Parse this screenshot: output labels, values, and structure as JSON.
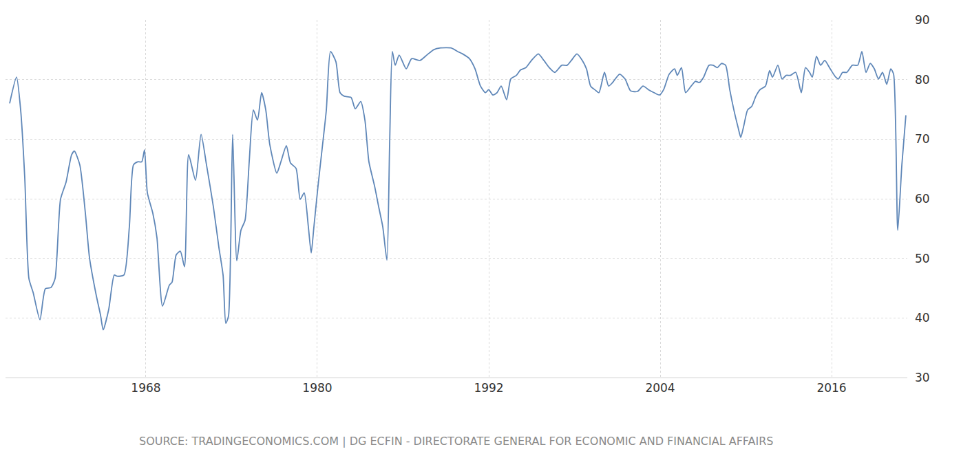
{
  "chart_data": {
    "type": "line",
    "annotations": [
      "SOURCE: TRADINGECONOMICS.COM | DG ECFIN - DIRECTORATE GENERAL FOR ECONOMIC AND FINANCIAL AFFAIRS"
    ],
    "x": [
      1958.46,
      1958.94,
      1959.23,
      1959.52,
      1959.81,
      1960.1,
      1960.58,
      1960.96,
      1961.35,
      1961.64,
      1962.02,
      1962.41,
      1962.8,
      1962.99,
      1963.37,
      1963.76,
      1964.05,
      1964.53,
      1964.82,
      1965.01,
      1965.4,
      1965.78,
      1965.98,
      1966.46,
      1966.84,
      1967.13,
      1967.42,
      1967.71,
      1967.9,
      1968.1,
      1968.48,
      1968.77,
      1969.16,
      1969.64,
      1969.83,
      1970.12,
      1970.41,
      1970.7,
      1970.99,
      1971.47,
      1971.86,
      1972.24,
      1972.72,
      1973.11,
      1973.4,
      1973.59,
      1973.78,
      1974.07,
      1974.36,
      1974.65,
      1974.94,
      1975.23,
      1975.52,
      1975.81,
      1976.1,
      1976.39,
      1976.67,
      1977.16,
      1977.45,
      1977.83,
      1978.12,
      1978.51,
      1978.8,
      1979.08,
      1979.37,
      1979.57,
      1979.76,
      1980.05,
      1980.34,
      1980.63,
      1980.92,
      1981.3,
      1981.59,
      1981.88,
      1982.36,
      1982.65,
      1983.04,
      1983.33,
      1983.61,
      1984.0,
      1984.29,
      1984.58,
      1984.87,
      1985.06,
      1985.25,
      1985.45,
      1985.73,
      1986.22,
      1986.6,
      1987.18,
      1987.66,
      1988.14,
      1988.63,
      1989.35,
      1989.83,
      1990.17,
      1990.65,
      1991.04,
      1991.42,
      1991.76,
      1992.0,
      1992.29,
      1992.58,
      1992.87,
      1993.25,
      1993.54,
      1993.93,
      1994.22,
      1994.6,
      1994.99,
      1995.47,
      1995.86,
      1996.24,
      1996.63,
      1997.11,
      1997.49,
      1997.78,
      1998.17,
      1998.55,
      1998.84,
      1999.13,
      1999.42,
      1999.71,
      2000.1,
      2000.39,
      2000.67,
      2001.16,
      2001.54,
      2001.93,
      2002.41,
      2002.8,
      2003.18,
      2003.57,
      2003.95,
      2004.24,
      2004.63,
      2005.01,
      2005.2,
      2005.49,
      2005.78,
      2006.17,
      2006.46,
      2006.75,
      2007.04,
      2007.42,
      2007.71,
      2008.0,
      2008.29,
      2008.58,
      2008.87,
      2009.16,
      2009.45,
      2009.64,
      2009.83,
      2010.12,
      2010.41,
      2010.7,
      2010.99,
      2011.37,
      2011.66,
      2011.86,
      2012.24,
      2012.53,
      2012.82,
      2013.11,
      2013.49,
      2013.88,
      2014.17,
      2014.46,
      2014.65,
      2014.94,
      2015.23,
      2015.52,
      2015.9,
      2016.29,
      2016.48,
      2016.77,
      2017.06,
      2017.45,
      2017.83,
      2018.12,
      2018.41,
      2018.7,
      2018.99,
      2019.28,
      2019.57,
      2019.86,
      2020.14,
      2020.34,
      2020.63,
      2020.92,
      2021.2
    ],
    "values": [
      76.0,
      80.4,
      74.9,
      63.4,
      46.6,
      44.3,
      39.7,
      44.9,
      45.1,
      46.6,
      59.9,
      62.8,
      67.4,
      68.0,
      65.7,
      57.6,
      50.1,
      43.7,
      40.5,
      38.0,
      41.5,
      47.2,
      47.0,
      47.2,
      55.3,
      65.7,
      66.2,
      66.2,
      68.2,
      61.0,
      57.6,
      53.5,
      42.0,
      45.5,
      46.0,
      50.6,
      51.2,
      48.6,
      67.4,
      63.1,
      70.8,
      65.7,
      58.7,
      51.8,
      47.2,
      39.1,
      40.3,
      70.8,
      49.6,
      54.7,
      56.4,
      66.2,
      74.9,
      73.2,
      77.8,
      74.9,
      69.1,
      64.3,
      66.2,
      68.9,
      66.0,
      65.1,
      59.9,
      61.0,
      55.3,
      50.9,
      55.3,
      62.2,
      68.5,
      74.9,
      84.7,
      83.0,
      77.8,
      77.2,
      77.0,
      75.1,
      76.3,
      73.2,
      66.2,
      62.2,
      58.7,
      55.3,
      49.7,
      69.1,
      84.7,
      82.4,
      84.1,
      81.8,
      83.5,
      83.2,
      84.1,
      85.0,
      85.3,
      85.3,
      84.7,
      84.3,
      83.5,
      81.8,
      78.9,
      77.8,
      78.3,
      77.4,
      77.8,
      78.9,
      76.6,
      80.1,
      80.7,
      81.6,
      82.0,
      83.2,
      84.3,
      83.2,
      82.0,
      81.2,
      82.4,
      82.4,
      83.2,
      84.3,
      83.2,
      81.8,
      78.9,
      78.3,
      77.8,
      81.2,
      78.9,
      79.5,
      80.9,
      80.1,
      78.1,
      78.0,
      78.9,
      78.3,
      77.8,
      77.4,
      78.3,
      80.9,
      81.8,
      80.7,
      82.0,
      77.8,
      78.9,
      79.7,
      79.5,
      80.4,
      82.4,
      82.4,
      82.0,
      82.7,
      82.4,
      78.3,
      74.9,
      72.0,
      70.3,
      72.0,
      74.9,
      75.5,
      77.2,
      78.3,
      78.9,
      81.5,
      80.4,
      82.4,
      80.1,
      80.7,
      80.7,
      81.2,
      77.8,
      82.0,
      81.2,
      80.4,
      83.9,
      82.4,
      83.2,
      81.8,
      80.4,
      80.1,
      81.2,
      81.2,
      82.4,
      82.4,
      84.7,
      81.2,
      82.7,
      81.8,
      80.1,
      81.2,
      79.2,
      81.8,
      80.9,
      54.7,
      65.7,
      74.0
    ],
    "color": "#5f87b8",
    "xlim": [
      1958.17,
      2021.3
    ],
    "xticks": [
      1968,
      1980,
      1992,
      2004,
      2016
    ],
    "ylim": [
      30,
      90
    ],
    "yticks": [
      30,
      40,
      50,
      60,
      70,
      80,
      90
    ],
    "grid": true
  }
}
